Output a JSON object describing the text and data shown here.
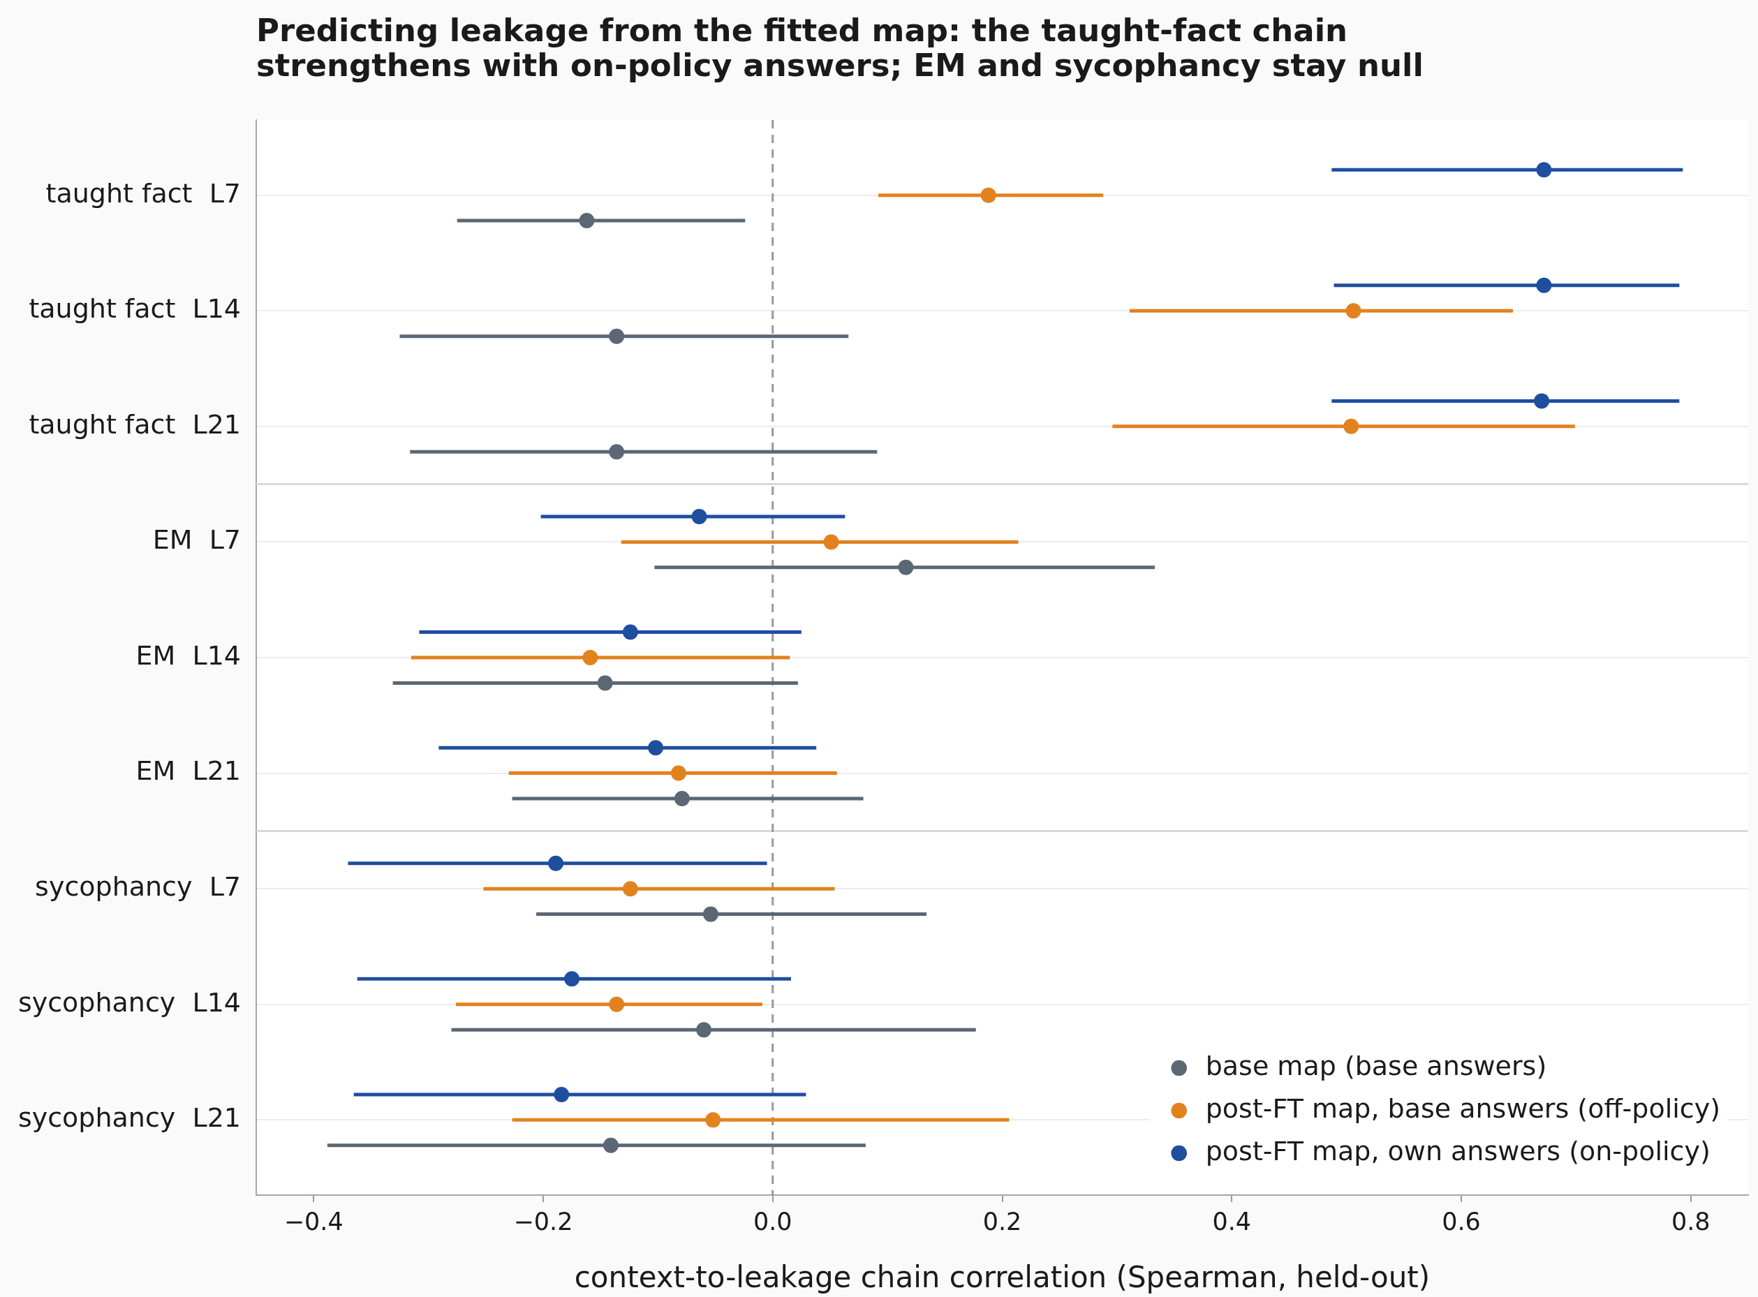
{
  "chart_data": {
    "type": "scatter",
    "orientation": "horizontal",
    "title": "Predicting leakage from the fitted map: the taught-fact chain strengthens with on-policy answers; EM and sycophancy stay null",
    "xlabel": "context-to-leakage chain correlation (Spearman, held-out)",
    "categories": [
      "taught fact  L7",
      "taught fact  L14",
      "taught fact  L21",
      "EM  L7",
      "EM  L14",
      "EM  L21",
      "sycophancy  L7",
      "sycophancy  L14",
      "sycophancy  L21"
    ],
    "series": [
      {
        "name": "base map (base answers)",
        "color": "#5b6775",
        "values": [
          -0.162,
          -0.136,
          -0.136,
          0.116,
          -0.146,
          -0.079,
          -0.054,
          -0.06,
          -0.141
        ],
        "errors": [
          [
            -0.275,
            -0.024
          ],
          [
            -0.325,
            0.066
          ],
          [
            -0.316,
            0.091
          ],
          [
            -0.103,
            0.333
          ],
          [
            -0.331,
            0.022
          ],
          [
            -0.227,
            0.079
          ],
          [
            -0.206,
            0.134
          ],
          [
            -0.28,
            0.177
          ],
          [
            -0.388,
            0.081
          ]
        ]
      },
      {
        "name": "post-FT map, base answers (off-policy)",
        "color": "#e2821f",
        "values": [
          0.188,
          0.506,
          0.504,
          0.051,
          -0.159,
          -0.082,
          -0.124,
          -0.136,
          -0.052
        ],
        "errors": [
          [
            0.092,
            0.288
          ],
          [
            0.311,
            0.645
          ],
          [
            0.296,
            0.699
          ],
          [
            -0.132,
            0.214
          ],
          [
            -0.315,
            0.015
          ],
          [
            -0.23,
            0.056
          ],
          [
            -0.252,
            0.054
          ],
          [
            -0.276,
            -0.009
          ],
          [
            -0.227,
            0.206
          ]
        ]
      },
      {
        "name": "post-FT map, own answers (on-policy)",
        "color": "#1f4e9f",
        "values": [
          0.672,
          0.672,
          0.67,
          -0.064,
          -0.124,
          -0.102,
          -0.189,
          -0.175,
          -0.184
        ],
        "errors": [
          [
            0.487,
            0.793
          ],
          [
            0.489,
            0.79
          ],
          [
            0.487,
            0.79
          ],
          [
            -0.202,
            0.063
          ],
          [
            -0.308,
            0.025
          ],
          [
            -0.291,
            0.038
          ],
          [
            -0.37,
            -0.005
          ],
          [
            -0.362,
            0.016
          ],
          [
            -0.365,
            0.029
          ]
        ]
      }
    ],
    "xlim": [
      -0.45,
      0.85
    ],
    "xticks": [
      {
        "value": -0.4,
        "label": "−0.4"
      },
      {
        "value": -0.2,
        "label": "−0.2"
      },
      {
        "value": 0,
        "label": "0.0"
      },
      {
        "value": 0.2,
        "label": "0.2"
      },
      {
        "value": 0.4,
        "label": "0.4"
      },
      {
        "value": 0.6,
        "label": "0.6"
      },
      {
        "value": 0.8,
        "label": "0.8"
      }
    ],
    "ref_lines": [
      {
        "axis": "x",
        "value": 0,
        "color": "#999999",
        "line_style": "dashed"
      }
    ],
    "grid": "y",
    "legend": "bottom right",
    "marker": "circle"
  }
}
